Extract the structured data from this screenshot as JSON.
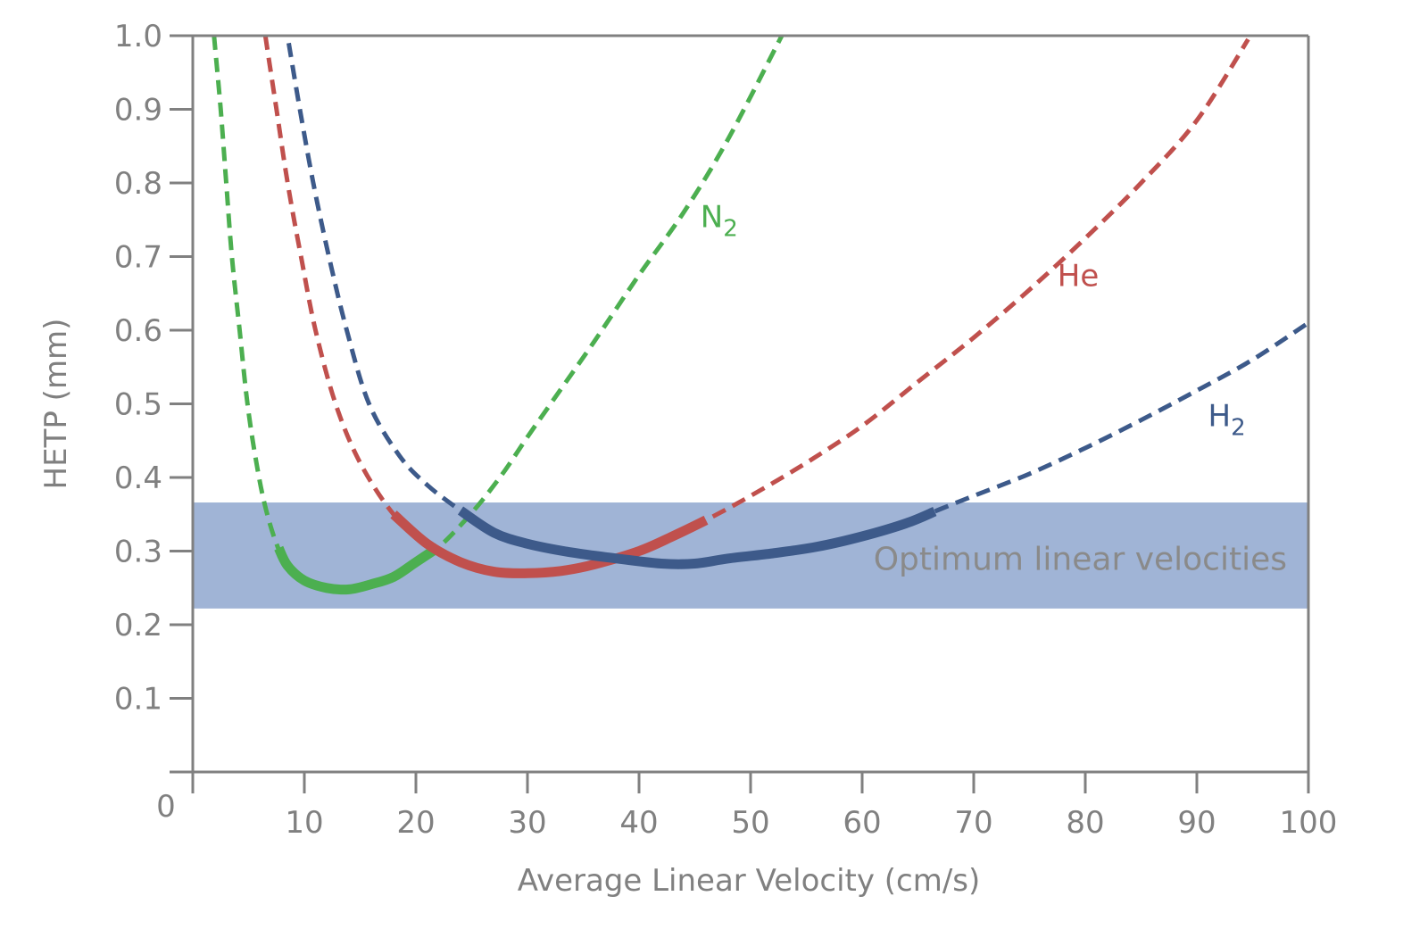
{
  "chart_data": {
    "type": "line",
    "title": "",
    "xlabel": "Average Linear Velocity (cm/s)",
    "ylabel": "HETP (mm)",
    "xlim": [
      0,
      100
    ],
    "ylim": [
      0,
      1.0
    ],
    "grid": false,
    "x_ticks": [
      10,
      20,
      30,
      40,
      50,
      60,
      70,
      80,
      90,
      100
    ],
    "x_tick_labels": [
      "10",
      "20",
      "30",
      "40",
      "50",
      "60",
      "70",
      "80",
      "90",
      "100"
    ],
    "y_ticks": [
      0.1,
      0.2,
      0.3,
      0.4,
      0.5,
      0.6,
      0.7,
      0.8,
      0.9,
      1.0
    ],
    "y_tick_labels": [
      "0.1",
      "0.2",
      "0.3",
      "0.4",
      "0.5",
      "0.6",
      "0.7",
      "0.8",
      "0.9",
      "1.0"
    ],
    "origin_label": "0",
    "band": {
      "label": "Optimum linear velocities",
      "y_range": [
        0.222,
        0.366
      ],
      "color": "#a0b4d6"
    },
    "series": [
      {
        "name": "N2",
        "label_main": "N",
        "label_sub": "2",
        "color": "#4caf50",
        "solid_range": [
          7.7,
          22
        ],
        "label_at": [
          45.5,
          0.74
        ],
        "x": [
          1.9,
          2.5,
          3.0,
          3.5,
          4.2,
          4.9,
          5.7,
          6.5,
          7.5,
          8.5,
          10,
          12,
          14,
          16,
          18,
          20,
          22,
          24,
          26,
          28,
          30,
          33,
          36,
          40,
          44,
          48,
          52.8
        ],
        "y": [
          1.0,
          0.9,
          0.8,
          0.7,
          0.6,
          0.5,
          0.42,
          0.36,
          0.31,
          0.28,
          0.26,
          0.25,
          0.248,
          0.255,
          0.265,
          0.285,
          0.305,
          0.335,
          0.37,
          0.41,
          0.455,
          0.52,
          0.585,
          0.675,
          0.76,
          0.86,
          1.0
        ]
      },
      {
        "name": "He",
        "label_main": "He",
        "label_sub": "",
        "color": "#c0504d",
        "solid_range": [
          18,
          46
        ],
        "label_at": [
          77.5,
          0.66
        ],
        "x": [
          6.5,
          7.5,
          8.5,
          9.7,
          11,
          12.8,
          15,
          18,
          21,
          24,
          27,
          30,
          33,
          36,
          40,
          43,
          46,
          50,
          55,
          60,
          65,
          70,
          75,
          80,
          85,
          90,
          94.6
        ],
        "y": [
          1.0,
          0.9,
          0.8,
          0.7,
          0.6,
          0.5,
          0.42,
          0.35,
          0.31,
          0.285,
          0.272,
          0.27,
          0.273,
          0.282,
          0.3,
          0.32,
          0.342,
          0.375,
          0.42,
          0.47,
          0.53,
          0.59,
          0.655,
          0.725,
          0.8,
          0.885,
          0.995
        ]
      },
      {
        "name": "H2",
        "label_main": "H",
        "label_sub": "2",
        "color": "#3d5a8a",
        "solid_range": [
          24,
          66.5
        ],
        "label_at": [
          91,
          0.47
        ],
        "x": [
          8.6,
          9.6,
          10.8,
          12.2,
          13.8,
          15.8,
          18.5,
          21,
          24,
          27,
          30,
          34,
          38,
          42,
          45,
          48,
          52,
          56,
          60,
          64,
          67,
          70,
          75,
          80,
          85,
          90,
          95,
          100
        ],
        "y": [
          0.99,
          0.9,
          0.8,
          0.7,
          0.6,
          0.5,
          0.43,
          0.39,
          0.355,
          0.325,
          0.31,
          0.298,
          0.29,
          0.283,
          0.283,
          0.29,
          0.297,
          0.306,
          0.32,
          0.338,
          0.357,
          0.375,
          0.405,
          0.44,
          0.478,
          0.518,
          0.56,
          0.61
        ]
      }
    ]
  }
}
